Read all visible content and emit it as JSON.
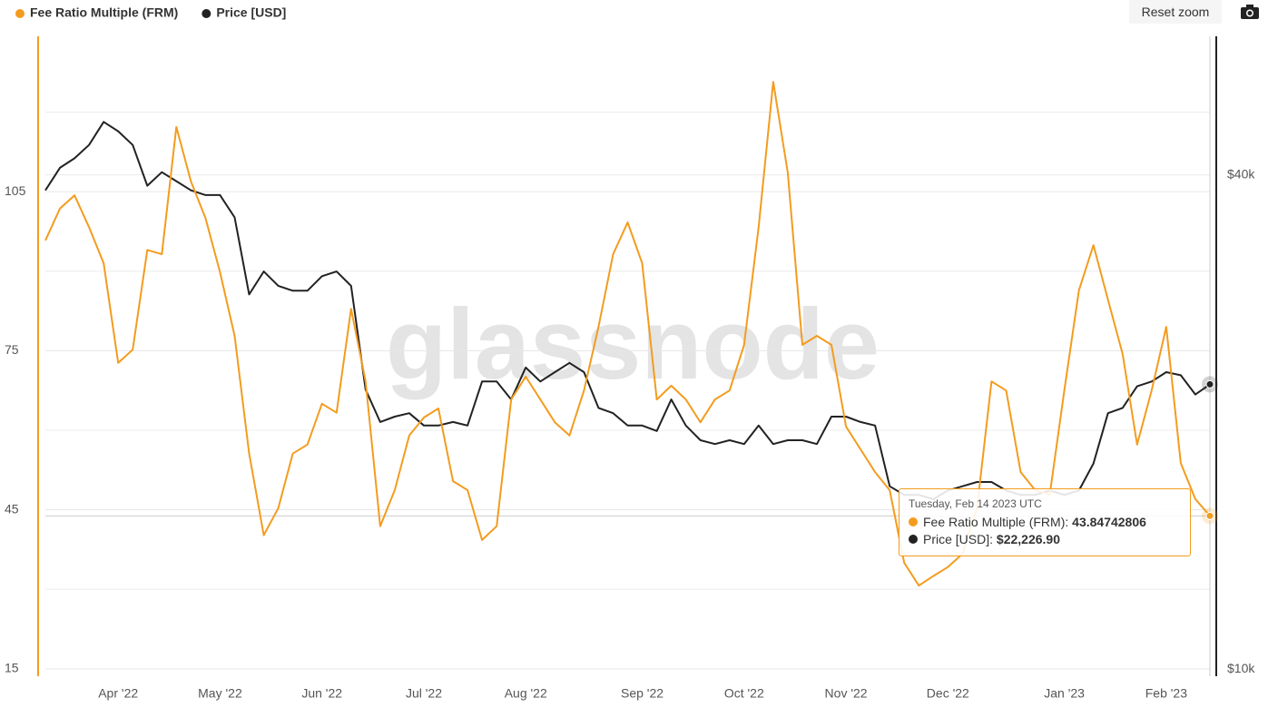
{
  "chart_data": {
    "type": "line",
    "watermark": "glassnode",
    "reset_button": "Reset zoom",
    "categories": [
      null,
      null,
      null,
      null,
      null,
      "Apr '22",
      null,
      null,
      null,
      null,
      null,
      null,
      "May '22",
      null,
      null,
      null,
      null,
      null,
      null,
      "Jun '22",
      null,
      null,
      null,
      null,
      null,
      null,
      "Jul '22",
      null,
      null,
      null,
      null,
      null,
      null,
      "Aug '22",
      null,
      null,
      null,
      null,
      null,
      null,
      null,
      "Sep '22",
      null,
      null,
      null,
      null,
      null,
      null,
      "Oct '22",
      null,
      null,
      null,
      null,
      null,
      null,
      "Nov '22",
      null,
      null,
      null,
      null,
      null,
      null,
      "Dec '22",
      null,
      null,
      null,
      null,
      null,
      null,
      null,
      "Jan '23",
      null,
      null,
      null,
      null,
      null,
      null,
      "Feb '23",
      null,
      null,
      null
    ],
    "series": [
      {
        "name": "Fee Ratio Multiple (FRM)",
        "color": "#f39c1f",
        "axis": "y",
        "values": [
          95.8,
          101.8,
          104.3,
          98.3,
          91.5,
          72.7,
          75.2,
          94.0,
          93.2,
          117.2,
          106.9,
          100.0,
          89.8,
          77.8,
          55.6,
          40.2,
          45.3,
          55.6,
          57.3,
          65.0,
          63.3,
          82.9,
          69.2,
          41.9,
          48.7,
          59.0,
          62.4,
          64.1,
          50.4,
          48.7,
          39.3,
          41.9,
          65.8,
          70.1,
          65.8,
          61.5,
          59.0,
          67.5,
          79.5,
          93.2,
          99.2,
          91.5,
          65.8,
          68.4,
          65.8,
          61.5,
          65.8,
          67.5,
          76.1,
          98.3,
          125.7,
          108.6,
          76.1,
          77.8,
          76.1,
          60.7,
          56.4,
          52.1,
          48.7,
          35.0,
          30.7,
          32.5,
          34.2,
          36.7,
          45.3,
          69.2,
          67.5,
          52.1,
          48.7,
          47.9,
          67.5,
          86.4,
          94.9,
          84.6,
          74.4,
          57.3,
          67.5,
          79.5,
          53.8,
          47.0,
          43.84742806
        ]
      },
      {
        "name": "Price [USD]",
        "color": "#222222",
        "axis": "y2",
        "values": [
          38300,
          40800,
          41900,
          43500,
          46400,
          45200,
          43500,
          38800,
          40300,
          39300,
          38300,
          37800,
          37800,
          35500,
          28600,
          30500,
          29300,
          28900,
          28900,
          30100,
          30500,
          29300,
          21900,
          20000,
          20300,
          20500,
          19800,
          19800,
          20000,
          19800,
          22400,
          22400,
          21300,
          23300,
          22400,
          23000,
          23600,
          23000,
          20800,
          20500,
          19800,
          19800,
          19500,
          21300,
          19800,
          19000,
          18800,
          19000,
          18800,
          19800,
          18800,
          19000,
          19000,
          18800,
          20300,
          20300,
          20000,
          19800,
          16700,
          16300,
          16300,
          16100,
          16500,
          16700,
          16900,
          16900,
          16500,
          16300,
          16300,
          16500,
          16300,
          16500,
          17800,
          20500,
          20800,
          22100,
          22400,
          23000,
          22800,
          21600,
          22226.9
        ]
      }
    ],
    "ylim": [
      13.6,
      134.3
    ],
    "yticks": [
      15,
      45,
      75,
      105
    ],
    "minor_grid": [
      30,
      60,
      90,
      120
    ],
    "y2lim": [
      9800,
      59000
    ],
    "y2scale": "log",
    "y2ticks": [
      {
        "value": 10000,
        "label": "$10k"
      },
      {
        "value": 40000,
        "label": "$40k"
      }
    ],
    "grid": true,
    "legend": "top-left",
    "tooltip": {
      "date": "Tuesday, Feb 14 2023 UTC",
      "labels": [
        "Fee Ratio Multiple (FRM):",
        "Price [USD]:"
      ],
      "price_label": "$22,226.90"
    }
  }
}
